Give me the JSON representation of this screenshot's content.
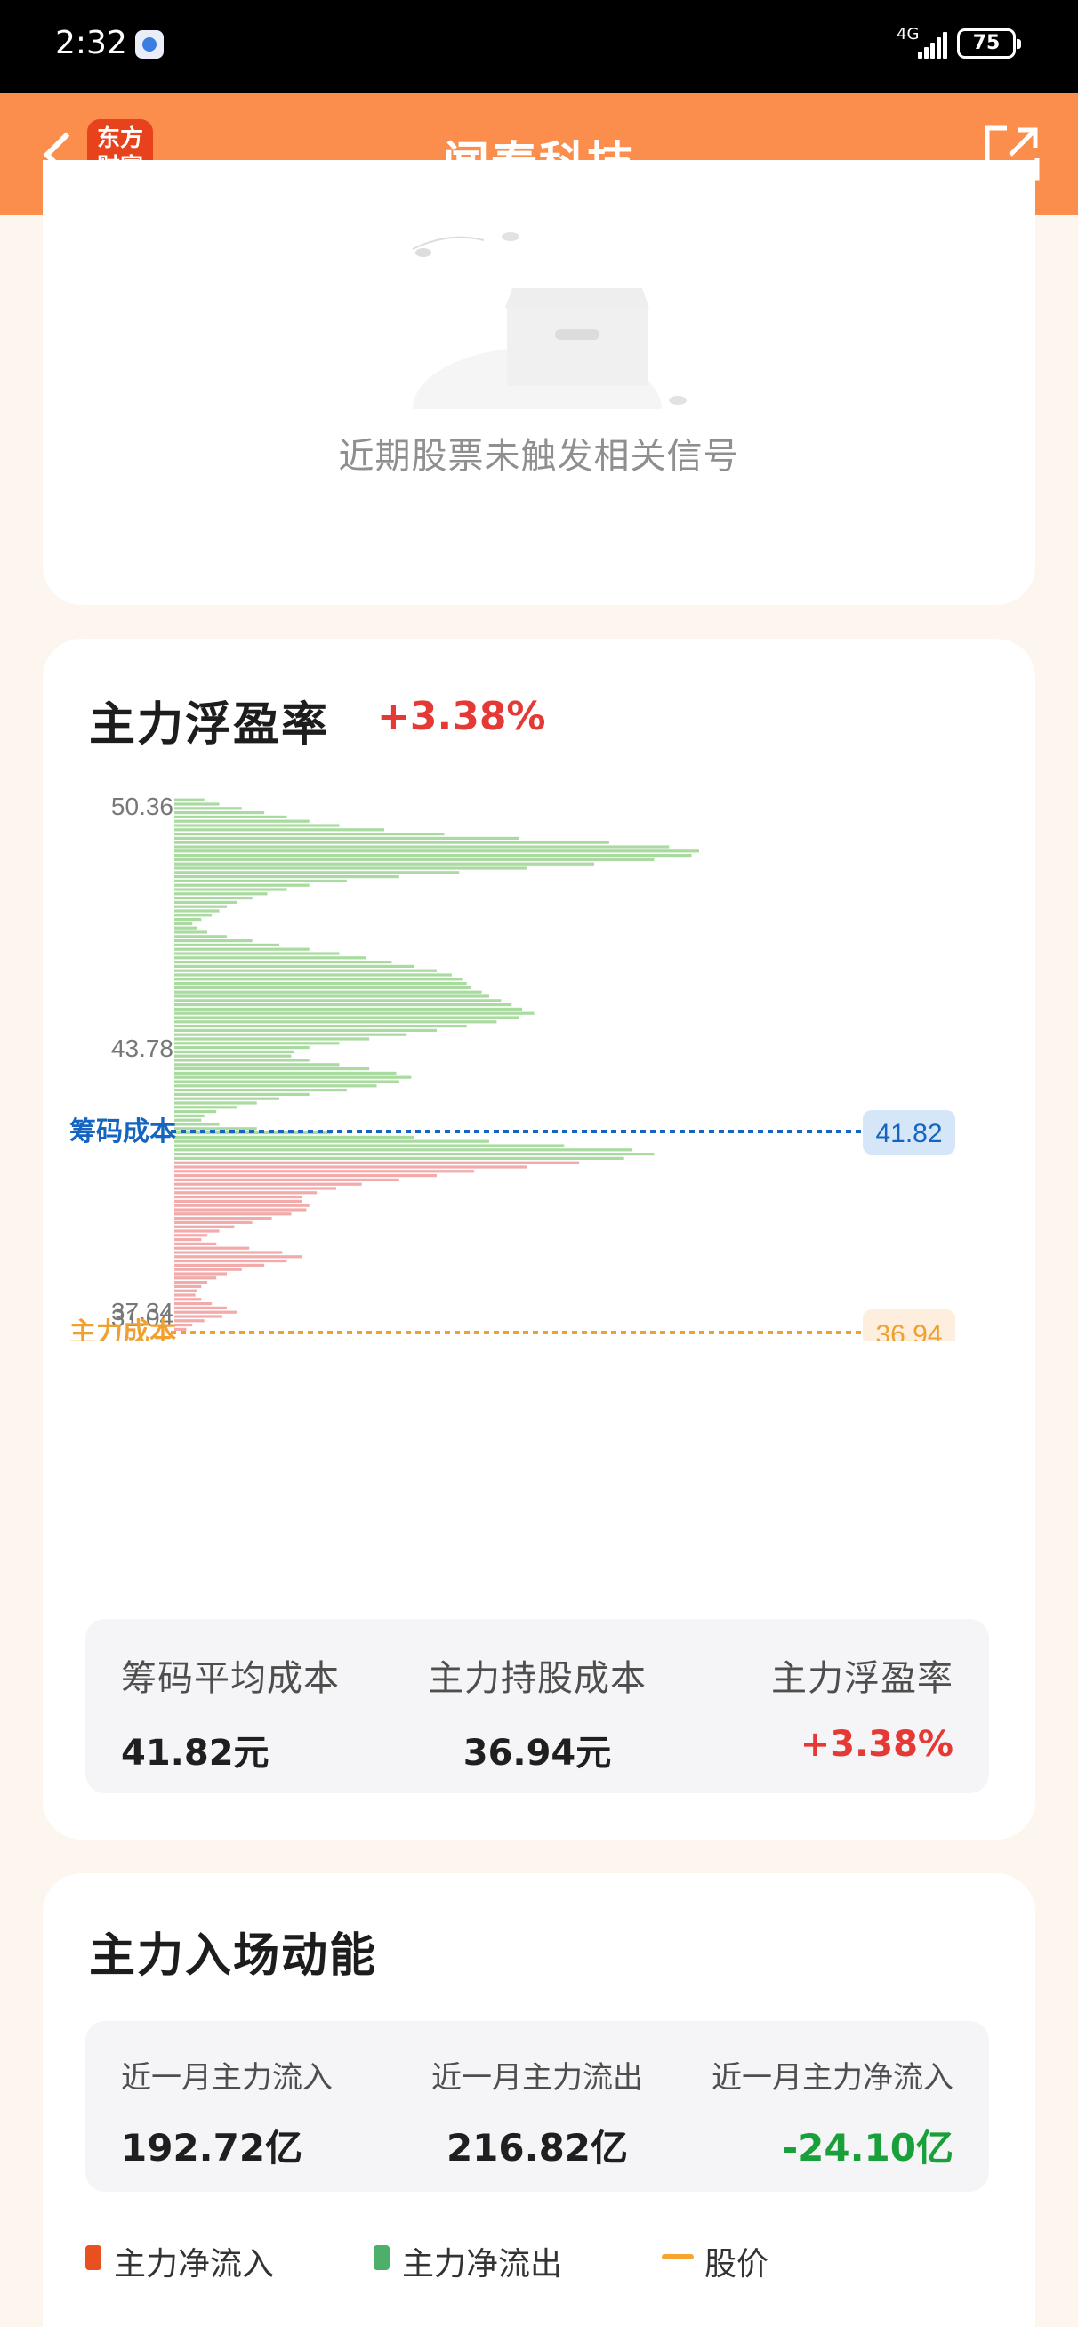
{
  "status_bar": {
    "time": "2:32",
    "network": "4G",
    "battery": "75"
  },
  "nav": {
    "title": "闻泰科技",
    "logo_line1": "东方",
    "logo_line2": "财富",
    "icons": [
      "back-icon",
      "share-icon"
    ]
  },
  "signal_card": {
    "empty_text": "近期股票未触发相关信号"
  },
  "profit_card": {
    "title": "主力浮盈率",
    "rate": "+3.38%",
    "y_ticks": [
      "50.36",
      "43.78",
      "37.34",
      "31.04"
    ],
    "cost_line": {
      "label": "筹码成本",
      "value": "41.82",
      "color": "#1565c0"
    },
    "main_line": {
      "label": "主力成本",
      "value": "36.94",
      "color": "#f0a030"
    },
    "summary": [
      {
        "label": "筹码平均成本",
        "value": "41.82元"
      },
      {
        "label": "主力持股成本",
        "value": "36.94元"
      },
      {
        "label": "主力浮盈率",
        "value": "+3.38%"
      }
    ]
  },
  "chart_data": {
    "type": "bar",
    "orientation": "horizontal",
    "title": "",
    "ylim": [
      30.7,
      50.7
    ],
    "y_ticks": [
      50.36,
      43.78,
      37.34,
      31.04
    ],
    "colors": {
      "profit": "#a9dba0",
      "loss": "#f2aaaa"
    },
    "threshold": 41.82,
    "price_levels": [
      50.66,
      50.5,
      50.34,
      50.18,
      50.02,
      49.86,
      49.7,
      49.54,
      49.38,
      49.22,
      49.06,
      48.9,
      48.74,
      48.58,
      48.42,
      48.26,
      48.1,
      47.94,
      47.78,
      47.62,
      47.46,
      47.3,
      47.14,
      46.98,
      46.82,
      46.66,
      46.5,
      46.34,
      46.18,
      46.02,
      45.86,
      45.7,
      45.54,
      45.38,
      45.22,
      45.06,
      44.9,
      44.74,
      44.58,
      44.42,
      44.26,
      44.1,
      43.94,
      43.78,
      43.62,
      43.46,
      43.3,
      43.14,
      42.98,
      42.82,
      42.66,
      42.5,
      42.34,
      42.18,
      42.02,
      41.86,
      41.7,
      41.54,
      41.38,
      41.22,
      41.06,
      40.9,
      40.74,
      40.58,
      40.42,
      40.26,
      40.1,
      39.94,
      39.78,
      39.62,
      39.46,
      39.3,
      39.14,
      38.98,
      38.82,
      38.66,
      38.5,
      38.34,
      38.18,
      38.02,
      37.86,
      37.7,
      37.54,
      37.38,
      37.22,
      37.06,
      36.9,
      36.74,
      36.58,
      36.42,
      36.26,
      36.1,
      35.94,
      35.78,
      35.62,
      35.46,
      35.3,
      35.14,
      34.98,
      34.82,
      34.66,
      34.5,
      34.34,
      34.18,
      34.02,
      33.86,
      33.7,
      33.54,
      33.38,
      33.22,
      33.06,
      32.9,
      32.74,
      32.58,
      32.42,
      32.26,
      32.1,
      31.94,
      31.78,
      31.62,
      31.46,
      31.3,
      31.14,
      30.98,
      30.82
    ],
    "values": [
      20,
      30,
      45,
      60,
      75,
      90,
      110,
      140,
      180,
      230,
      290,
      330,
      350,
      345,
      320,
      280,
      235,
      190,
      150,
      115,
      90,
      75,
      62,
      52,
      42,
      35,
      30,
      25,
      18,
      12,
      15,
      22,
      35,
      52,
      70,
      90,
      110,
      128,
      145,
      160,
      175,
      185,
      192,
      195,
      198,
      205,
      210,
      218,
      225,
      232,
      240,
      230,
      215,
      195,
      175,
      155,
      130,
      110,
      90,
      80,
      78,
      90,
      110,
      130,
      148,
      158,
      150,
      135,
      115,
      90,
      70,
      55,
      42,
      28,
      20,
      18,
      30,
      55,
      105,
      160,
      210,
      260,
      305,
      320,
      300,
      270,
      235,
      200,
      175,
      150,
      125,
      108,
      95,
      85,
      85,
      90,
      88,
      78,
      65,
      52,
      40,
      30,
      22,
      18,
      28,
      50,
      72,
      85,
      75,
      60,
      45,
      35,
      28,
      22,
      18,
      15,
      14,
      18,
      25,
      35,
      42,
      32,
      20,
      12,
      8
    ]
  },
  "flow_card": {
    "title": "主力入场动能",
    "stats": [
      {
        "label": "近一月主力流入",
        "value": "192.72亿"
      },
      {
        "label": "近一月主力流出",
        "value": "216.82亿"
      },
      {
        "label": "近一月主力净流入",
        "value": "-24.10亿"
      }
    ],
    "legend": [
      {
        "label": "主力净流入",
        "color": "#e8501f"
      },
      {
        "label": "主力净流出",
        "color": "#4caf6a"
      },
      {
        "label": "股价",
        "color": "#f5a530"
      }
    ]
  }
}
